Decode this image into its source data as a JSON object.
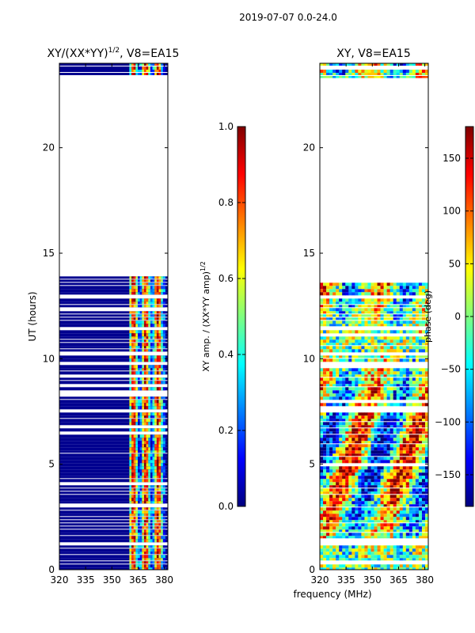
{
  "suptitle": "2019-07-07 0.0-24.0",
  "colors": {
    "background": "#00008f",
    "jet": [
      "#00007f",
      "#0000ff",
      "#007fff",
      "#00ffff",
      "#7fff7f",
      "#ffff00",
      "#ff7f00",
      "#ff0000",
      "#7f0000"
    ]
  },
  "chart_data": [
    {
      "type": "heatmap",
      "title_parts": {
        "prefix": "XY/(XX*YY)",
        "sup": "1/2",
        "suffix": ", V8=EA15"
      },
      "xlabel": "",
      "ylabel": "UT (hours)",
      "xlim": [
        320,
        382
      ],
      "ylim": [
        0,
        24
      ],
      "xticks": [
        "320",
        "335",
        "350",
        "365",
        "380"
      ],
      "xtick_values": [
        320,
        335,
        350,
        365,
        380
      ],
      "yticks": [
        "0",
        "5",
        "10",
        "15",
        "20"
      ],
      "ytick_values": [
        0,
        5,
        10,
        15,
        20
      ],
      "data_ranges_hours": [
        [
          0,
          13.9
        ],
        [
          23.3,
          24.0
        ]
      ],
      "signal_band_mhz": [
        360,
        380
      ],
      "colorbar": {
        "label_parts": {
          "prefix": "XY amp. / (XX*YY amp)",
          "sup": "1/2"
        },
        "range": [
          0.0,
          1.0
        ],
        "ticks": [
          "0.0",
          "0.2",
          "0.4",
          "0.6",
          "0.8",
          "1.0"
        ],
        "tick_values": [
          0.0,
          0.2,
          0.4,
          0.6,
          0.8,
          1.0
        ]
      }
    },
    {
      "type": "heatmap",
      "title": "XY, V8=EA15",
      "xlabel": "frequency (MHz)",
      "ylabel": "",
      "xlim": [
        320,
        382
      ],
      "ylim": [
        0,
        24
      ],
      "xticks": [
        "320",
        "335",
        "350",
        "365",
        "380"
      ],
      "xtick_values": [
        320,
        335,
        350,
        365,
        380
      ],
      "yticks": [
        "0",
        "5",
        "10",
        "15",
        "20"
      ],
      "ytick_values": [
        0,
        5,
        10,
        15,
        20
      ],
      "data_ranges_hours": [
        [
          0,
          13.9
        ],
        [
          23.3,
          24.0
        ]
      ],
      "colorbar": {
        "label": "phase (deg)",
        "range": [
          -180,
          180
        ],
        "ticks": [
          "−150",
          "−100",
          "−50",
          "0",
          "50",
          "100",
          "150"
        ],
        "tick_values": [
          -150,
          -100,
          -50,
          0,
          50,
          100,
          150
        ]
      }
    }
  ]
}
